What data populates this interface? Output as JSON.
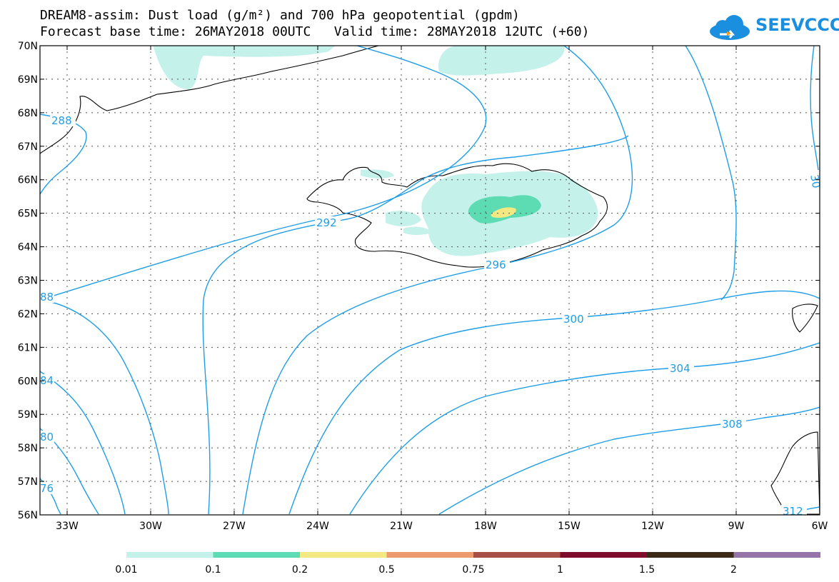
{
  "header": {
    "title_line1": "DREAM8-assim: Dust load (g/m²) and 700 hPa geopotential (gpdm)",
    "title_line2": "Forecast base time: 26MAY2018 00UTC   Valid time: 28MAY2018 12UTC (+60)",
    "logo_text": "SEEVCCC"
  },
  "map": {
    "lat_labels": [
      "70N",
      "69N",
      "68N",
      "67N",
      "66N",
      "65N",
      "64N",
      "63N",
      "62N",
      "61N",
      "60N",
      "59N",
      "58N",
      "57N",
      "56N"
    ],
    "lon_labels": [
      "33W",
      "30W",
      "27W",
      "24W",
      "21W",
      "18W",
      "15W",
      "12W",
      "9W",
      "6W"
    ],
    "contour_labels": [
      "288",
      "292",
      "296",
      "300",
      "304",
      "308",
      "312",
      "88",
      "84",
      "80",
      "76",
      "30"
    ],
    "colors": {
      "contour": "#1e9ee8",
      "coast": "#000000"
    }
  },
  "legend": {
    "labels": [
      "0.01",
      "0.1",
      "0.2",
      "0.5",
      "0.75",
      "1",
      "1.5",
      "2"
    ],
    "colors": [
      "#c4f1e9",
      "#5ddcb4",
      "#f4e882",
      "#ec9a6e",
      "#a85048",
      "#7e0c2c",
      "#3c2a18",
      "#9574a8"
    ]
  }
}
